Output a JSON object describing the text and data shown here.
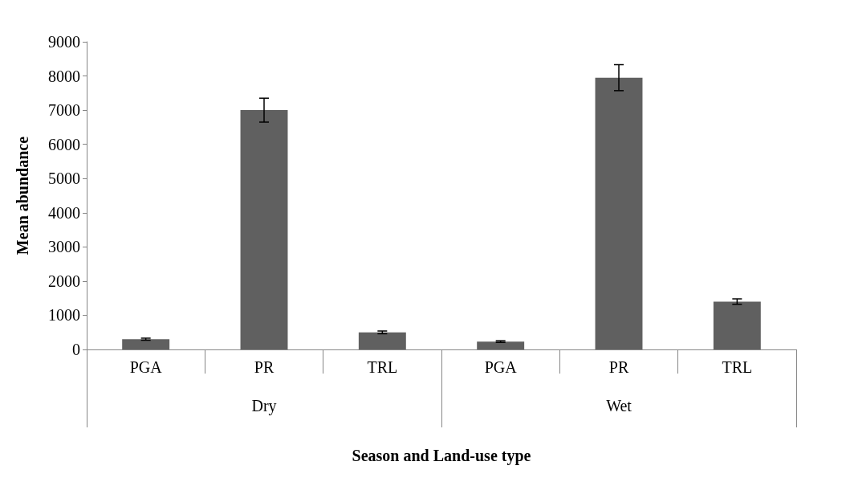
{
  "chart_data": {
    "type": "bar",
    "xlabel": "Season and Land-use type",
    "ylabel": "Mean abundance",
    "categories": [
      "PGA",
      "PR",
      "TRL",
      "PGA",
      "PR",
      "TRL"
    ],
    "annotations": [
      "Dry",
      "Wet"
    ],
    "values": [
      300,
      7000,
      500,
      230,
      7950,
      1400
    ],
    "errors": [
      30,
      350,
      40,
      25,
      380,
      80
    ],
    "color": "#606060",
    "ylim": [
      0,
      9000
    ],
    "yticks": [
      0,
      1000,
      2000,
      3000,
      4000,
      5000,
      6000,
      7000,
      8000,
      9000
    ],
    "grid": false
  }
}
